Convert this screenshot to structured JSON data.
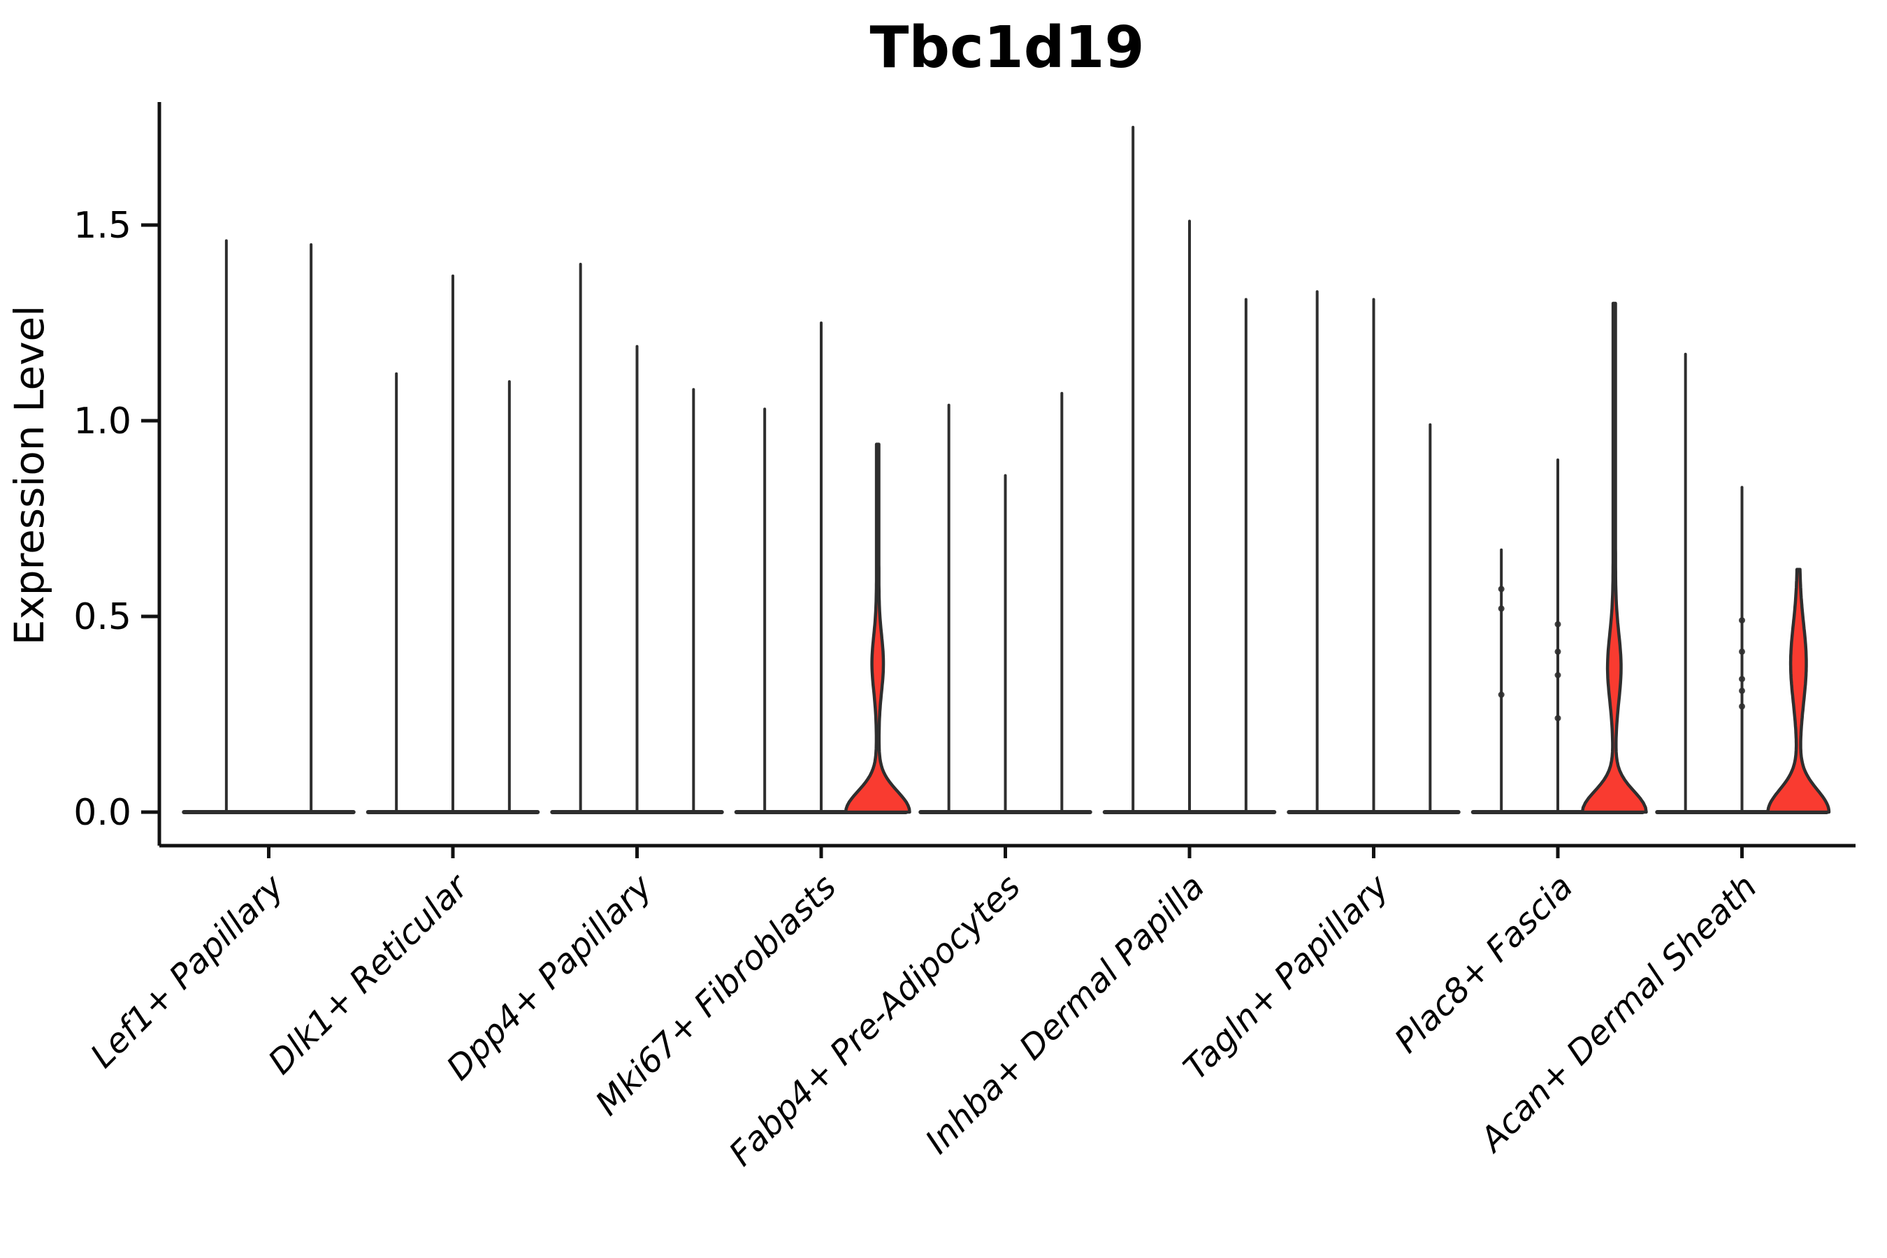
{
  "title": "Tbc1d19",
  "y_axis": {
    "label": "Expression Level",
    "tick_labels": [
      "0.0",
      "0.5",
      "1.0",
      "1.5"
    ]
  },
  "x_axis": {
    "tick_labels": [
      "Lef1+ Papillary",
      "Dlk1+ Reticular",
      "Dpp4+ Papillary",
      "Mki67+ Fibroblasts",
      "Fabp4+ Pre-Adipocytes",
      "Inhba+ Dermal Papilla",
      "Tagln+ Papillary",
      "Plac8+ Fascia",
      "Acan+ Dermal Sheath"
    ]
  },
  "colors": {
    "violin_fill": "#f93b30",
    "violin_stroke": "#2e2e2e",
    "axis": "#111111",
    "text": "#000000",
    "background": "#ffffff"
  },
  "chart_data": {
    "type": "violin",
    "title": "Tbc1d19",
    "xlabel": "",
    "ylabel": "Expression Level",
    "ylim": [
      0,
      1.85
    ],
    "yticks": [
      0.0,
      0.5,
      1.0,
      1.5
    ],
    "grid": false,
    "legend": "none",
    "categories": [
      "Lef1+ Papillary",
      "Dlk1+ Reticular",
      "Dpp4+ Papillary",
      "Mki67+ Fibroblasts",
      "Fabp4+ Pre-Adipocytes",
      "Inhba+ Dermal Papilla",
      "Tagln+ Papillary",
      "Plac8+ Fascia",
      "Acan+ Dermal Sheath"
    ],
    "groups": [
      {
        "category": "Lef1+ Papillary",
        "violins": [
          {
            "max": 1.46,
            "filled": false,
            "points": []
          },
          {
            "max": 1.45,
            "filled": false,
            "points": []
          }
        ]
      },
      {
        "category": "Dlk1+ Reticular",
        "violins": [
          {
            "max": 1.12,
            "filled": false,
            "points": []
          },
          {
            "max": 1.37,
            "filled": false,
            "points": []
          },
          {
            "max": 1.1,
            "filled": false,
            "points": []
          }
        ]
      },
      {
        "category": "Dpp4+ Papillary",
        "violins": [
          {
            "max": 1.4,
            "filled": false,
            "points": []
          },
          {
            "max": 1.19,
            "filled": false,
            "points": []
          },
          {
            "max": 1.08,
            "filled": false,
            "points": []
          }
        ]
      },
      {
        "category": "Mki67+ Fibroblasts",
        "violins": [
          {
            "max": 1.03,
            "filled": false,
            "points": []
          },
          {
            "max": 1.25,
            "filled": false,
            "points": []
          },
          {
            "max": 0.94,
            "filled": true,
            "base_halfwidth": 44,
            "base_sigma": 0.075,
            "lens_halfwidth": 6.5,
            "lens_center": 0.38,
            "lens_sigma": 0.1,
            "points": []
          }
        ]
      },
      {
        "category": "Fabp4+ Pre-Adipocytes",
        "violins": [
          {
            "max": 1.04,
            "filled": false,
            "points": []
          },
          {
            "max": 0.86,
            "filled": false,
            "points": []
          },
          {
            "max": 1.07,
            "filled": false,
            "points": []
          }
        ]
      },
      {
        "category": "Inhba+ Dermal Papilla",
        "violins": [
          {
            "max": 1.75,
            "filled": false,
            "points": []
          },
          {
            "max": 1.51,
            "filled": false,
            "points": []
          },
          {
            "max": 1.31,
            "filled": false,
            "points": []
          }
        ]
      },
      {
        "category": "Tagln+ Papillary",
        "violins": [
          {
            "max": 1.33,
            "filled": false,
            "points": []
          },
          {
            "max": 1.31,
            "filled": false,
            "points": []
          },
          {
            "max": 0.99,
            "filled": false,
            "points": []
          }
        ]
      },
      {
        "category": "Plac8+ Fascia",
        "violins": [
          {
            "max": 0.67,
            "filled": false,
            "points": [
              0.57,
              0.52,
              0.3
            ]
          },
          {
            "max": 0.9,
            "filled": false,
            "points": [
              0.48,
              0.41,
              0.35,
              0.24
            ]
          },
          {
            "max": 1.3,
            "filled": true,
            "base_halfwidth": 44,
            "base_sigma": 0.075,
            "lens_halfwidth": 8.0,
            "lens_center": 0.37,
            "lens_sigma": 0.12,
            "points": []
          }
        ]
      },
      {
        "category": "Acan+ Dermal Sheath",
        "violins": [
          {
            "max": 1.17,
            "filled": false,
            "points": []
          },
          {
            "max": 0.83,
            "filled": false,
            "points": [
              0.49,
              0.41,
              0.34,
              0.31,
              0.27
            ]
          },
          {
            "max": 0.62,
            "filled": true,
            "base_halfwidth": 42,
            "base_sigma": 0.08,
            "lens_halfwidth": 9.5,
            "lens_center": 0.38,
            "lens_sigma": 0.14,
            "points": []
          }
        ]
      }
    ]
  }
}
